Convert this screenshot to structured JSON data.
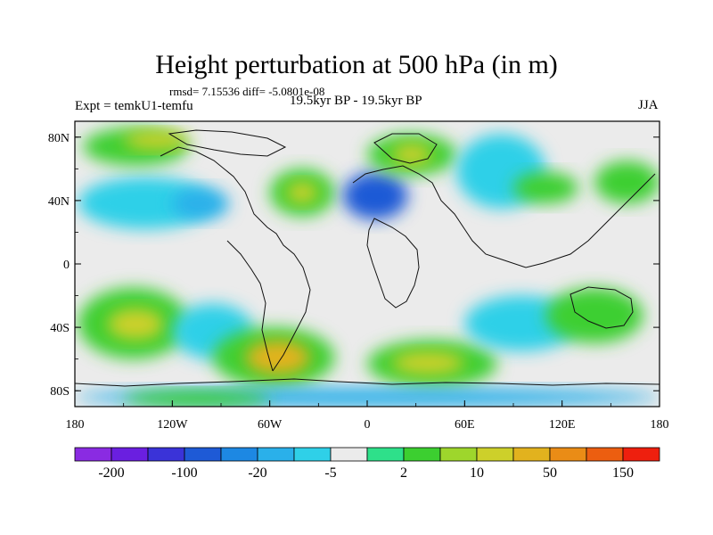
{
  "chart_data": {
    "type": "heatmap",
    "title": "Height perturbation at 500 hPa (in m)",
    "stats_line": "rmsd= 7.15536 diff= -5.0801e-08",
    "left_label": "Expt = temkU1-temfu",
    "center_label": "19.5kyr BP - 19.5kyr BP",
    "right_label": "JJA",
    "y_ticks": [
      "80N",
      "40N",
      "0",
      "40S",
      "80S"
    ],
    "x_ticks": [
      "180",
      "120W",
      "60W",
      "0",
      "60E",
      "120E",
      "180"
    ],
    "colorbar_labels": [
      "-200",
      "-100",
      "-20",
      "-5",
      "2",
      "10",
      "50",
      "150"
    ],
    "colorbar_colors": [
      "#8a2be2",
      "#6a1fe0",
      "#3a33d8",
      "#1e5ad6",
      "#1d88e3",
      "#2ab0ea",
      "#2fd0e8",
      "#ebebeb",
      "#2ee08a",
      "#3ccf30",
      "#9ed62c",
      "#cdd02a",
      "#e2b21e",
      "#ea8c16",
      "#ec5e10",
      "#ee1f0e"
    ],
    "panels": [
      {
        "name": "north-pacific-cyan",
        "lon": [
          -178,
          -95
        ],
        "lat": [
          22,
          55
        ],
        "level": 6
      },
      {
        "name": "north-america-cyan",
        "lon": [
          -120,
          -85
        ],
        "lat": [
          28,
          48
        ],
        "level": 5
      },
      {
        "name": "arctic-green-1",
        "lon": [
          -175,
          -110
        ],
        "lat": [
          62,
          86
        ],
        "level": 9
      },
      {
        "name": "arctic-yellow",
        "lon": [
          -150,
          -110
        ],
        "lat": [
          72,
          84
        ],
        "level": 11
      },
      {
        "name": "north-atlantic-green",
        "lon": [
          -60,
          -20
        ],
        "lat": [
          30,
          60
        ],
        "level": 9
      },
      {
        "name": "north-atlantic-yellow",
        "lon": [
          -50,
          -30
        ],
        "lat": [
          38,
          52
        ],
        "level": 11
      },
      {
        "name": "europe-blue",
        "lon": [
          -15,
          25
        ],
        "lat": [
          28,
          58
        ],
        "level": 3
      },
      {
        "name": "scandinavia-green",
        "lon": [
          0,
          55
        ],
        "lat": [
          56,
          82
        ],
        "level": 9
      },
      {
        "name": "scandinavia-yellow",
        "lon": [
          15,
          40
        ],
        "lat": [
          62,
          76
        ],
        "level": 11
      },
      {
        "name": "asia-cyan",
        "lon": [
          55,
          110
        ],
        "lat": [
          35,
          82
        ],
        "level": 6
      },
      {
        "name": "east-asia-green",
        "lon": [
          90,
          130
        ],
        "lat": [
          38,
          58
        ],
        "level": 9
      },
      {
        "name": "pacific-green-ne",
        "lon": [
          140,
          180
        ],
        "lat": [
          38,
          65
        ],
        "level": 9
      },
      {
        "name": "south-pacific-green",
        "lon": [
          -178,
          -110
        ],
        "lat": [
          -60,
          -15
        ],
        "level": 9
      },
      {
        "name": "south-pacific-yellow",
        "lon": [
          -160,
          -125
        ],
        "lat": [
          -48,
          -28
        ],
        "level": 11
      },
      {
        "name": "south-pacific-cyan",
        "lon": [
          -120,
          -70
        ],
        "lat": [
          -60,
          -25
        ],
        "level": 6
      },
      {
        "name": "south-atlantic-green",
        "lon": [
          -95,
          -20
        ],
        "lat": [
          -78,
          -40
        ],
        "level": 9
      },
      {
        "name": "south-atlantic-yellow",
        "lon": [
          -75,
          -35
        ],
        "lat": [
          -70,
          -48
        ],
        "level": 12
      },
      {
        "name": "south-indian-green",
        "lon": [
          0,
          80
        ],
        "lat": [
          -78,
          -48
        ],
        "level": 9
      },
      {
        "name": "south-indian-yellow",
        "lon": [
          15,
          60
        ],
        "lat": [
          -70,
          -55
        ],
        "level": 11
      },
      {
        "name": "indian-cyan",
        "lon": [
          60,
          130
        ],
        "lat": [
          -55,
          -20
        ],
        "level": 6
      },
      {
        "name": "australia-green",
        "lon": [
          110,
          170
        ],
        "lat": [
          -50,
          -15
        ],
        "level": 9
      },
      {
        "name": "antarctic-blue",
        "lon": [
          -180,
          180
        ],
        "lat": [
          -90,
          -78
        ],
        "level": 5
      },
      {
        "name": "antarctic-green",
        "lon": [
          -150,
          -60
        ],
        "lat": [
          -90,
          -80
        ],
        "level": 9
      }
    ]
  }
}
